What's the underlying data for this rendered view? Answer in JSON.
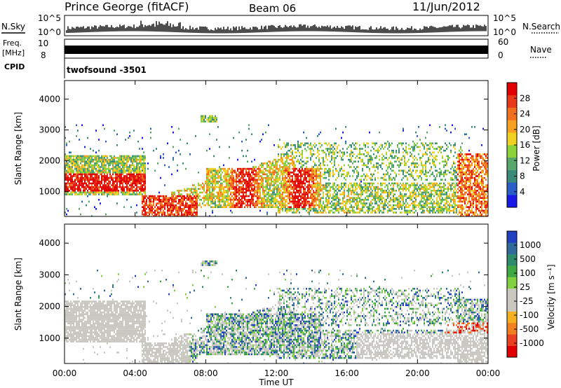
{
  "header": {
    "station": "Prince George (fitACF)",
    "beam": "Beam 06",
    "date": "11/Jun/2012"
  },
  "strips": {
    "nsky_label": "N.Sky",
    "nsky_ticks": [
      "10^5",
      "10^0"
    ],
    "nsearch_label": "N.Search",
    "freq_label_1": "Freq.",
    "freq_label_2": "[MHz]",
    "freq_ticks": [
      "10",
      "8"
    ],
    "nave_label": "Nave",
    "nave_ticks": [
      "60",
      "0"
    ],
    "cpid_label": "CPID",
    "cpid_value": "twofsound -3501"
  },
  "colors": {
    "power_scale": [
      "#1a1ae6",
      "#2a5fc8",
      "#3a8a7a",
      "#55a86a",
      "#8cd03a",
      "#f0d020",
      "#f5a020",
      "#f07020",
      "#e83a1a",
      "#e00000"
    ],
    "velocity_scale": [
      "#2040c0",
      "#2f6a9a",
      "#2e8a6a",
      "#40a840",
      "#80d040",
      "#c8c8c0",
      "#c8c8c0",
      "#f5b020",
      "#f08020",
      "#e84020",
      "#e00000"
    ],
    "ground_scatter": "#c8c8c0"
  },
  "chart_data": [
    {
      "type": "heatmap",
      "panel": "power",
      "ylabel": "Slant Range [km]",
      "yticks": [
        "1000",
        "2000",
        "3000",
        "4000"
      ],
      "ylim": [
        200,
        4600
      ],
      "xlim_hours": [
        0,
        24
      ],
      "xticks": [
        "00:00",
        "04:00",
        "08:00",
        "12:00",
        "16:00",
        "20:00",
        "00:00"
      ],
      "colorbar": {
        "label": "Power [dB]",
        "tick_labels": [
          "4",
          "8",
          "12",
          "16",
          "20",
          "24",
          "28"
        ]
      }
    },
    {
      "type": "heatmap",
      "panel": "velocity",
      "ylabel": "Slant Range [km]",
      "yticks": [
        "1000",
        "2000",
        "3000",
        "4000"
      ],
      "ylim": [
        200,
        4600
      ],
      "xlim_hours": [
        0,
        24
      ],
      "xticks": [
        "00:00",
        "04:00",
        "08:00",
        "12:00",
        "16:00",
        "20:00",
        "00:00"
      ],
      "xlabel": "Time UT",
      "colorbar": {
        "label": "Velocity [m s⁻¹]",
        "tick_labels": [
          "1000",
          "500",
          "100",
          "25",
          "-25",
          "-100",
          "-500",
          "-1000"
        ]
      }
    }
  ]
}
